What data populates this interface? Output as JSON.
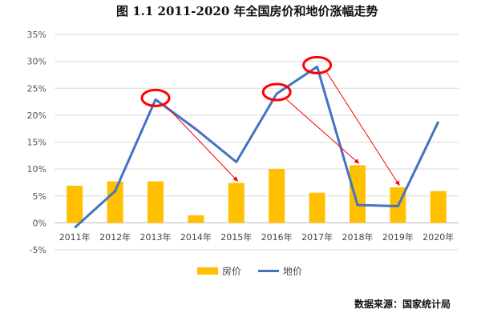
{
  "chart_data": {
    "type": "bar+line",
    "title": "图 1.1   2011-2020 年全国房价和地价涨幅走势",
    "categories": [
      "2011年",
      "2012年",
      "2013年",
      "2014年",
      "2015年",
      "2016年",
      "2017年",
      "2018年",
      "2019年",
      "2020年"
    ],
    "y_ticks": [
      "35%",
      "30%",
      "25%",
      "20%",
      "15%",
      "10%",
      "5%",
      "0%",
      "-5%"
    ],
    "ylim": [
      -5,
      35
    ],
    "series": [
      {
        "name": "房价",
        "type": "bar",
        "color": "#FFC000",
        "values": [
          6.9,
          7.7,
          7.7,
          1.4,
          7.4,
          10.0,
          5.6,
          10.7,
          6.6,
          5.9
        ]
      },
      {
        "name": "地价",
        "type": "line",
        "color": "#4472C4",
        "values": [
          -0.9,
          5.9,
          22.9,
          17.4,
          11.3,
          24.0,
          29.0,
          3.3,
          3.1,
          18.8
        ]
      }
    ],
    "annotations": {
      "circles_at": [
        "2013年",
        "2016年",
        "2017年"
      ],
      "arrows": [
        {
          "from": "2013年",
          "to": "2015年"
        },
        {
          "from": "2016年",
          "to": "2018年"
        },
        {
          "from": "2017年",
          "to": "2019年"
        }
      ],
      "color": "#FF0000"
    },
    "grid": true,
    "legend_position": "bottom",
    "source": "数据来源：国家统计局"
  }
}
